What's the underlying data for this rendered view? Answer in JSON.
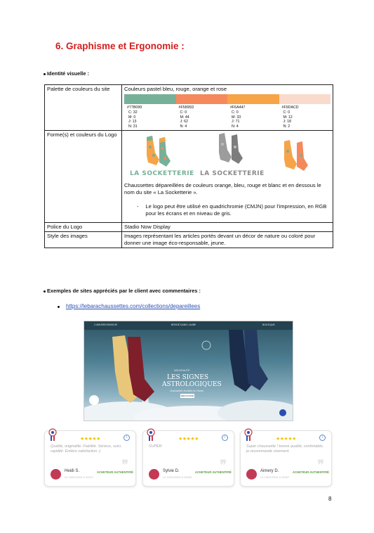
{
  "heading": "6.  Graphisme et Ergonomie :",
  "section1_title": "Identité visuelle :",
  "table": {
    "row1_label": "Palette de couleurs du site",
    "row1_text": "Couleurs pastel bleu, rouge, orange et rose",
    "colors": [
      {
        "hex": "#77B099",
        "code": "#77B099",
        "c": "C: 32",
        "m": "M: 0",
        "j": "J: 13",
        "n": "N: 31"
      },
      {
        "hex": "#F5895D",
        "code": "#F5895D",
        "c": "C: 0",
        "m": "M: 44",
        "j": "J: 62",
        "n": "N: 4"
      },
      {
        "hex": "#F6A447",
        "code": "#F6A447",
        "c": "C: 0",
        "m": "M: 33",
        "j": "J: 71",
        "n": "N: 4"
      },
      {
        "hex": "#F9DACD",
        "code": "#F9DACD",
        "c": "C: 0",
        "m": "M: 12",
        "j": "J: 18",
        "n": "N: 2"
      }
    ],
    "row2_label": "Forme(s) et couleurs du Logo",
    "logo_text_color": "LA SOCKETTERIE",
    "logo_text_grey": "LA SOCKETTERIE",
    "row2_text": "Chaussettes dépareillées de couleurs orange, bleu, rouge et blanc et en dessous le nom du site « La Socketterie ».",
    "row2_dash": "-",
    "row2_note": "Le logo peut être utilisé en quadrichromie (CMJN) pour l'impression, en RGB pour les écrans et en niveau de gris.",
    "row3_label": "Police du Logo",
    "row3_text": "Stadio Now Display",
    "row4_label": "Style des images",
    "row4_text": "Images représentant les articles portés devant un décor de nature ou coloré pour donner une image éco-responsable, jeune."
  },
  "section2_title": "Exemples de sites appréciés par le client avec commentaires :",
  "link": "https://lebarachaussettes.com/collections/depareillees",
  "screenshot": {
    "nav_left": "L'UNIVERS BONCHE",
    "nav_center": "BRODÉ DANS L'AUBE",
    "nav_right": "BOUTIQUE",
    "hero_line": "NOUVEAUTÉ",
    "hero_title_1": "LES SIGNES",
    "hero_title_2": "ASTROLOGIQUES",
    "hero_sub": "Chaussettes brodées en France",
    "hero_button": "DÉCOUVRIR"
  },
  "reviews": [
    {
      "stars": "★★★★★",
      "text": "Qualité, originalité. Fiabilité. Sérieux, suivi, rapidité. Entière satisfaction :)",
      "name": "Heidi S.",
      "date": "Le 10/01/2024 à 10h17",
      "verified": "ACHETEUR AUTHENTIFIÉ"
    },
    {
      "stars": "★★★★★",
      "text": "SUPER",
      "name": "Sylvie D.",
      "date": "Le 10/01/2024 à 10h00",
      "verified": "ACHETEUR AUTHENTIFIÉ"
    },
    {
      "stars": "★★★★★",
      "text": "Super chaussette ! bonne qualité, confortable, je recommande vivement.",
      "name": "Aimery D.",
      "date": "Le 10/01/2024 à 10h07",
      "verified": "ACHETEUR AUTHENTIFIÉ"
    }
  ],
  "page_number": "8"
}
